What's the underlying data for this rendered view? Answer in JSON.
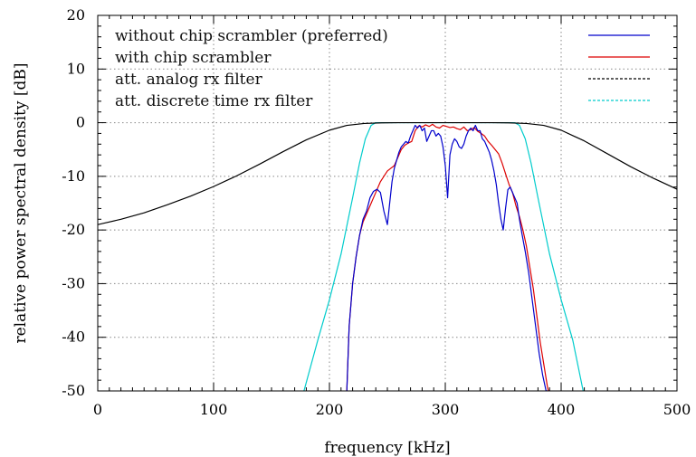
{
  "chart_data": {
    "type": "line",
    "xlabel": "frequency [kHz]",
    "ylabel": "relative power spectral density [dB]",
    "xlim": [
      0,
      500
    ],
    "ylim": [
      -50,
      20
    ],
    "xticks": [
      0,
      100,
      200,
      300,
      400,
      500
    ],
    "yticks": [
      -50,
      -40,
      -30,
      -20,
      -10,
      0,
      10,
      20
    ],
    "xtick_labels": [
      "0",
      "100",
      "200",
      "300",
      "400",
      "500"
    ],
    "ytick_labels": [
      "-50",
      "-40",
      "-30",
      "-20",
      "-10",
      "0",
      "10",
      "20"
    ],
    "grid": true,
    "legend_position": "top",
    "series": [
      {
        "name": "without chip scrambler (preferred)",
        "color": "#0000cc",
        "x": [
          215,
          217,
          220,
          223,
          226,
          229,
          232,
          235,
          238,
          241,
          244,
          247,
          250,
          252,
          254,
          256,
          258,
          260,
          262,
          264,
          266,
          268,
          270,
          272,
          274,
          276,
          278,
          280,
          282,
          284,
          286,
          288,
          290,
          292,
          294,
          296,
          298,
          300,
          301,
          302,
          303,
          304,
          306,
          308,
          310,
          312,
          314,
          316,
          318,
          320,
          322,
          324,
          326,
          328,
          330,
          332,
          334,
          336,
          338,
          340,
          342,
          344,
          346,
          348,
          350,
          352,
          354,
          356,
          358,
          360,
          362,
          364,
          366,
          369,
          372,
          375,
          378,
          381,
          384,
          387,
          389
        ],
        "y": [
          -50,
          -38,
          -30,
          -25,
          -21,
          -18,
          -16.5,
          -14,
          -12.8,
          -12.4,
          -13,
          -16.5,
          -19,
          -15,
          -11,
          -8.5,
          -7,
          -5.5,
          -4.5,
          -4,
          -3.5,
          -3.8,
          -2.5,
          -1.5,
          -0.5,
          -1,
          -0.5,
          -1.5,
          -1,
          -3.5,
          -2.5,
          -1.5,
          -1.5,
          -2.5,
          -2,
          -2.5,
          -4.5,
          -8,
          -11,
          -14,
          -10,
          -6,
          -4,
          -3,
          -3.5,
          -4.5,
          -4.8,
          -4,
          -2.5,
          -1.5,
          -1,
          -1.5,
          -0.5,
          -1.5,
          -1.5,
          -3,
          -3.5,
          -4.5,
          -5.5,
          -7,
          -9,
          -11.5,
          -15,
          -18,
          -20,
          -16,
          -12.5,
          -12,
          -13,
          -14,
          -15,
          -18,
          -20.5,
          -24,
          -28,
          -33,
          -38,
          -43,
          -47,
          -50,
          -50
        ]
      },
      {
        "name": "with chip scrambler",
        "color": "#dd0000",
        "x": [
          215,
          217,
          220,
          223,
          226,
          229,
          232,
          235,
          238,
          241,
          244,
          247,
          250,
          253,
          256,
          259,
          262,
          265,
          268,
          271,
          274,
          277,
          280,
          283,
          286,
          289,
          292,
          295,
          298,
          301,
          304,
          307,
          310,
          313,
          316,
          319,
          322,
          325,
          328,
          331,
          334,
          337,
          340,
          343,
          346,
          349,
          352,
          355,
          358,
          361,
          364,
          367,
          370,
          373,
          376,
          379,
          382,
          385,
          388,
          389
        ],
        "y": [
          -50,
          -38,
          -30,
          -25,
          -21,
          -18.5,
          -17,
          -15.5,
          -14,
          -12.5,
          -11,
          -10,
          -9,
          -8.5,
          -8,
          -6.5,
          -5,
          -4.2,
          -3.8,
          -3.5,
          -1.5,
          -0.6,
          -0.8,
          -0.4,
          -0.7,
          -0.3,
          -0.8,
          -1,
          -0.5,
          -0.7,
          -0.9,
          -0.8,
          -1.1,
          -1.3,
          -0.8,
          -1.5,
          -1.3,
          -0.9,
          -1.6,
          -2,
          -2.5,
          -3.5,
          -4.2,
          -5,
          -5.8,
          -7.5,
          -9.5,
          -11.5,
          -13,
          -15.5,
          -17.5,
          -20,
          -23,
          -27,
          -31,
          -36,
          -41,
          -45,
          -49,
          -50
        ]
      },
      {
        "name": "att. analog rx filter",
        "color": "#000000",
        "x": [
          0,
          20,
          40,
          60,
          80,
          100,
          120,
          140,
          160,
          180,
          200,
          215,
          230,
          245,
          260,
          275,
          300,
          325,
          340,
          355,
          370,
          385,
          400,
          420,
          440,
          460,
          480,
          500
        ],
        "y": [
          -19,
          -18,
          -16.8,
          -15.3,
          -13.7,
          -11.9,
          -9.9,
          -7.7,
          -5.4,
          -3.2,
          -1.4,
          -0.5,
          -0.15,
          -0.03,
          0,
          0,
          0,
          0,
          0,
          -0.03,
          -0.15,
          -0.5,
          -1.4,
          -3.4,
          -5.8,
          -8.2,
          -10.4,
          -12.4
        ]
      },
      {
        "name": "att. discrete time rx filter",
        "color": "#00cccc",
        "x": [
          178,
          190,
          200,
          210,
          220,
          226,
          231,
          236,
          240,
          250,
          300,
          350,
          360,
          364,
          369,
          374,
          380,
          390,
          400,
          410,
          419
        ],
        "y": [
          -50,
          -40.5,
          -33,
          -24.5,
          -14,
          -7.5,
          -3,
          -0.5,
          0,
          0,
          0,
          0,
          0,
          -0.5,
          -3,
          -7.5,
          -14,
          -24.5,
          -33,
          -40.5,
          -50
        ]
      }
    ]
  }
}
